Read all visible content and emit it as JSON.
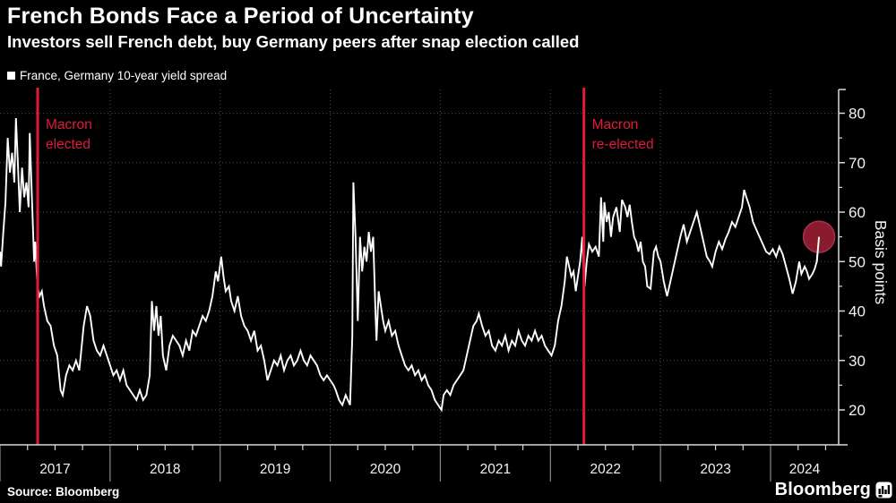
{
  "header": {
    "title": "French Bonds Face a Period of Uncertainty",
    "subtitle": "Investors sell French debt, buy Germany peers after snap election called"
  },
  "legend": {
    "label": "France, Germany 10-year yield spread"
  },
  "footer": {
    "source": "Source: Bloomberg",
    "logo": "Bloomberg"
  },
  "colors": {
    "background": "#000000",
    "line": "#ffffff",
    "event_red": "#e01a3b",
    "grid": "#4f4f4f",
    "axis": "#d9d9d9",
    "separator": "#8a8a8a",
    "tick_text": "#f2f2f2",
    "highlight_fill": "#8a1b2e",
    "highlight_stroke": "#a83050"
  },
  "chart_data": {
    "type": "line",
    "title": "French Bonds Face a Period of Uncertainty",
    "subtitle": "Investors sell French debt, buy Germany peers after snap election called",
    "xlabel": "",
    "ylabel": "Basis points",
    "legend_position": "top-left",
    "grid": "dotted",
    "xlim": [
      2017,
      2024.62
    ],
    "ylim": [
      13,
      85
    ],
    "ylim_axis": [
      20,
      80
    ],
    "yticks": [
      20,
      30,
      40,
      50,
      60,
      70,
      80
    ],
    "yticks_minor": [
      25,
      35,
      45,
      55,
      65,
      75
    ],
    "xticks": [
      2017,
      2018,
      2019,
      2020,
      2021,
      2022,
      2023,
      2024
    ],
    "annotations": [
      {
        "x": 2017.342,
        "label": "Macron elected",
        "label_lines": [
          "Macron",
          "elected"
        ]
      },
      {
        "x": 2022.304,
        "label": "Macron re-elected",
        "label_lines": [
          "Macron",
          "re-elected"
        ]
      }
    ],
    "highlight_point": {
      "x": 2024.44,
      "y": 55
    },
    "series": [
      {
        "name": "France, Germany 10-year yield spread",
        "points": [
          [
            2017.0,
            52
          ],
          [
            2017.01,
            49
          ],
          [
            2017.03,
            56
          ],
          [
            2017.05,
            62
          ],
          [
            2017.07,
            75
          ],
          [
            2017.09,
            68
          ],
          [
            2017.11,
            72
          ],
          [
            2017.13,
            66
          ],
          [
            2017.145,
            79
          ],
          [
            2017.16,
            71
          ],
          [
            2017.18,
            60
          ],
          [
            2017.2,
            69
          ],
          [
            2017.22,
            63
          ],
          [
            2017.24,
            66
          ],
          [
            2017.26,
            61
          ],
          [
            2017.27,
            76
          ],
          [
            2017.29,
            63
          ],
          [
            2017.31,
            50
          ],
          [
            2017.32,
            54
          ],
          [
            2017.34,
            45
          ],
          [
            2017.36,
            43
          ],
          [
            2017.38,
            44
          ],
          [
            2017.4,
            41
          ],
          [
            2017.43,
            38
          ],
          [
            2017.46,
            37
          ],
          [
            2017.49,
            33
          ],
          [
            2017.52,
            31
          ],
          [
            2017.55,
            24
          ],
          [
            2017.57,
            23
          ],
          [
            2017.6,
            27
          ],
          [
            2017.63,
            29
          ],
          [
            2017.66,
            28
          ],
          [
            2017.69,
            30
          ],
          [
            2017.72,
            28
          ],
          [
            2017.76,
            37
          ],
          [
            2017.79,
            41
          ],
          [
            2017.82,
            39
          ],
          [
            2017.85,
            34
          ],
          [
            2017.88,
            32
          ],
          [
            2017.91,
            31
          ],
          [
            2017.94,
            33
          ],
          [
            2017.97,
            31
          ],
          [
            2018.0,
            29
          ],
          [
            2018.03,
            27
          ],
          [
            2018.06,
            28
          ],
          [
            2018.09,
            26
          ],
          [
            2018.12,
            28
          ],
          [
            2018.15,
            25
          ],
          [
            2018.18,
            24
          ],
          [
            2018.21,
            23
          ],
          [
            2018.24,
            22
          ],
          [
            2018.27,
            24
          ],
          [
            2018.3,
            22
          ],
          [
            2018.33,
            23
          ],
          [
            2018.36,
            27
          ],
          [
            2018.38,
            42
          ],
          [
            2018.4,
            36
          ],
          [
            2018.42,
            41
          ],
          [
            2018.44,
            35
          ],
          [
            2018.46,
            39
          ],
          [
            2018.48,
            31
          ],
          [
            2018.51,
            28
          ],
          [
            2018.54,
            33
          ],
          [
            2018.57,
            35
          ],
          [
            2018.6,
            34
          ],
          [
            2018.63,
            33
          ],
          [
            2018.66,
            31
          ],
          [
            2018.69,
            34
          ],
          [
            2018.72,
            32
          ],
          [
            2018.75,
            36
          ],
          [
            2018.78,
            35
          ],
          [
            2018.81,
            37
          ],
          [
            2018.84,
            39
          ],
          [
            2018.87,
            38
          ],
          [
            2018.9,
            40
          ],
          [
            2018.93,
            43
          ],
          [
            2018.96,
            48
          ],
          [
            2018.98,
            46
          ],
          [
            2019.01,
            51
          ],
          [
            2019.03,
            47
          ],
          [
            2019.05,
            44
          ],
          [
            2019.08,
            45
          ],
          [
            2019.1,
            42
          ],
          [
            2019.13,
            40
          ],
          [
            2019.16,
            43
          ],
          [
            2019.19,
            39
          ],
          [
            2019.22,
            37
          ],
          [
            2019.25,
            36
          ],
          [
            2019.28,
            34
          ],
          [
            2019.31,
            36
          ],
          [
            2019.34,
            32
          ],
          [
            2019.37,
            33
          ],
          [
            2019.4,
            30
          ],
          [
            2019.43,
            26
          ],
          [
            2019.46,
            28
          ],
          [
            2019.49,
            30
          ],
          [
            2019.52,
            29
          ],
          [
            2019.55,
            31
          ],
          [
            2019.58,
            28
          ],
          [
            2019.61,
            30
          ],
          [
            2019.64,
            31
          ],
          [
            2019.67,
            29
          ],
          [
            2019.7,
            30
          ],
          [
            2019.73,
            32
          ],
          [
            2019.76,
            30
          ],
          [
            2019.79,
            29
          ],
          [
            2019.82,
            31
          ],
          [
            2019.85,
            30
          ],
          [
            2019.88,
            29
          ],
          [
            2019.91,
            27
          ],
          [
            2019.94,
            26
          ],
          [
            2019.97,
            27
          ],
          [
            2020.0,
            26
          ],
          [
            2020.03,
            25
          ],
          [
            2020.05,
            24
          ],
          [
            2020.08,
            22
          ],
          [
            2020.11,
            21
          ],
          [
            2020.14,
            23
          ],
          [
            2020.16,
            22
          ],
          [
            2020.18,
            21
          ],
          [
            2020.2,
            35
          ],
          [
            2020.21,
            66
          ],
          [
            2020.23,
            55
          ],
          [
            2020.25,
            38
          ],
          [
            2020.27,
            55
          ],
          [
            2020.29,
            48
          ],
          [
            2020.31,
            53
          ],
          [
            2020.33,
            50
          ],
          [
            2020.35,
            56
          ],
          [
            2020.37,
            52
          ],
          [
            2020.39,
            55
          ],
          [
            2020.41,
            40
          ],
          [
            2020.42,
            34
          ],
          [
            2020.44,
            44
          ],
          [
            2020.46,
            41
          ],
          [
            2020.48,
            38
          ],
          [
            2020.5,
            36
          ],
          [
            2020.53,
            38
          ],
          [
            2020.56,
            35
          ],
          [
            2020.59,
            36
          ],
          [
            2020.62,
            33
          ],
          [
            2020.65,
            31
          ],
          [
            2020.68,
            29
          ],
          [
            2020.71,
            28
          ],
          [
            2020.74,
            29
          ],
          [
            2020.77,
            27
          ],
          [
            2020.8,
            28
          ],
          [
            2020.83,
            26
          ],
          [
            2020.86,
            27
          ],
          [
            2020.89,
            25
          ],
          [
            2020.92,
            24
          ],
          [
            2020.95,
            22
          ],
          [
            2020.98,
            21
          ],
          [
            2021.01,
            20
          ],
          [
            2021.03,
            23
          ],
          [
            2021.06,
            24
          ],
          [
            2021.09,
            23
          ],
          [
            2021.12,
            25
          ],
          [
            2021.15,
            26
          ],
          [
            2021.18,
            27
          ],
          [
            2021.21,
            28
          ],
          [
            2021.24,
            31
          ],
          [
            2021.27,
            34
          ],
          [
            2021.3,
            37
          ],
          [
            2021.33,
            38
          ],
          [
            2021.35,
            39.5
          ],
          [
            2021.38,
            37
          ],
          [
            2021.41,
            35
          ],
          [
            2021.44,
            36
          ],
          [
            2021.47,
            33
          ],
          [
            2021.5,
            32
          ],
          [
            2021.53,
            34
          ],
          [
            2021.56,
            33
          ],
          [
            2021.59,
            35
          ],
          [
            2021.62,
            32
          ],
          [
            2021.65,
            34
          ],
          [
            2021.68,
            33
          ],
          [
            2021.71,
            36
          ],
          [
            2021.74,
            34
          ],
          [
            2021.77,
            33
          ],
          [
            2021.8,
            35
          ],
          [
            2021.83,
            34
          ],
          [
            2021.86,
            36
          ],
          [
            2021.89,
            34
          ],
          [
            2021.92,
            35
          ],
          [
            2021.95,
            33
          ],
          [
            2021.98,
            32
          ],
          [
            2022.01,
            31
          ],
          [
            2022.04,
            33
          ],
          [
            2022.07,
            38
          ],
          [
            2022.1,
            41
          ],
          [
            2022.13,
            46
          ],
          [
            2022.15,
            51
          ],
          [
            2022.17,
            49
          ],
          [
            2022.19,
            47
          ],
          [
            2022.21,
            48
          ],
          [
            2022.23,
            44
          ],
          [
            2022.25,
            47
          ],
          [
            2022.27,
            50
          ],
          [
            2022.29,
            55
          ],
          [
            2022.3,
            49
          ],
          [
            2022.31,
            45
          ],
          [
            2022.33,
            50
          ],
          [
            2022.35,
            53.5
          ],
          [
            2022.38,
            52
          ],
          [
            2022.41,
            53
          ],
          [
            2022.44,
            51
          ],
          [
            2022.46,
            63
          ],
          [
            2022.48,
            54
          ],
          [
            2022.49,
            62
          ],
          [
            2022.51,
            58
          ],
          [
            2022.53,
            60
          ],
          [
            2022.55,
            55
          ],
          [
            2022.57,
            59
          ],
          [
            2022.6,
            61
          ],
          [
            2022.63,
            56
          ],
          [
            2022.65,
            62.5
          ],
          [
            2022.68,
            61
          ],
          [
            2022.7,
            59
          ],
          [
            2022.72,
            61.5
          ],
          [
            2022.74,
            58
          ],
          [
            2022.76,
            55
          ],
          [
            2022.78,
            54
          ],
          [
            2022.8,
            52
          ],
          [
            2022.82,
            54
          ],
          [
            2022.84,
            50
          ],
          [
            2022.86,
            49
          ],
          [
            2022.88,
            45
          ],
          [
            2022.91,
            44.5
          ],
          [
            2022.94,
            52
          ],
          [
            2022.96,
            53
          ],
          [
            2022.98,
            51
          ],
          [
            2023.0,
            50
          ],
          [
            2023.03,
            46
          ],
          [
            2023.06,
            43
          ],
          [
            2023.09,
            46
          ],
          [
            2023.12,
            49
          ],
          [
            2023.15,
            52
          ],
          [
            2023.18,
            55
          ],
          [
            2023.21,
            57.5
          ],
          [
            2023.24,
            54
          ],
          [
            2023.27,
            56
          ],
          [
            2023.3,
            58
          ],
          [
            2023.33,
            60
          ],
          [
            2023.36,
            57
          ],
          [
            2023.39,
            54
          ],
          [
            2023.42,
            51
          ],
          [
            2023.45,
            50
          ],
          [
            2023.47,
            49
          ],
          [
            2023.5,
            52
          ],
          [
            2023.53,
            54
          ],
          [
            2023.56,
            52.5
          ],
          [
            2023.59,
            54.5
          ],
          [
            2023.62,
            56
          ],
          [
            2023.65,
            58
          ],
          [
            2023.68,
            57
          ],
          [
            2023.71,
            59
          ],
          [
            2023.74,
            61
          ],
          [
            2023.76,
            64.5
          ],
          [
            2023.78,
            63
          ],
          [
            2023.81,
            61
          ],
          [
            2023.84,
            58
          ],
          [
            2023.87,
            56.5
          ],
          [
            2023.9,
            55
          ],
          [
            2023.93,
            53.5
          ],
          [
            2023.96,
            52
          ],
          [
            2023.99,
            51.5
          ],
          [
            2024.02,
            52.5
          ],
          [
            2024.05,
            51
          ],
          [
            2024.08,
            53
          ],
          [
            2024.11,
            51.5
          ],
          [
            2024.14,
            49
          ],
          [
            2024.17,
            46.5
          ],
          [
            2024.2,
            43.5
          ],
          [
            2024.23,
            46
          ],
          [
            2024.26,
            50
          ],
          [
            2024.28,
            47.5
          ],
          [
            2024.31,
            49
          ],
          [
            2024.33,
            48
          ],
          [
            2024.35,
            46.5
          ],
          [
            2024.38,
            47.5
          ],
          [
            2024.4,
            48.5
          ],
          [
            2024.42,
            50
          ],
          [
            2024.44,
            55
          ]
        ]
      }
    ]
  }
}
